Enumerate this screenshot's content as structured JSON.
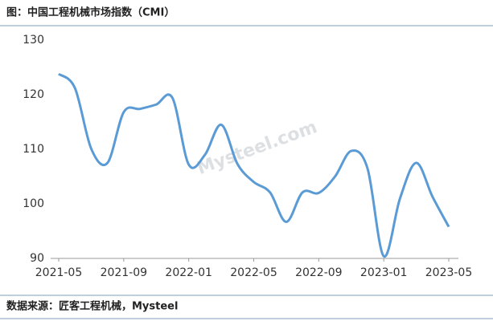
{
  "title": "图：中国工程机械市场指数（CMI）",
  "source": "数据来源：匠客工程机械，Mysteel",
  "chart_data": {
    "type": "line",
    "watermark": "Mysteel.com",
    "categories": [
      "2021-05",
      null,
      null,
      null,
      "2021-09",
      null,
      null,
      null,
      "2022-01",
      null,
      null,
      null,
      "2022-05",
      null,
      null,
      null,
      "2022-09",
      null,
      null,
      null,
      "2023-01",
      null,
      null,
      null,
      "2023-05"
    ],
    "series": [
      {
        "color": "#5b9bd5",
        "values": [
          123.8,
          121.2,
          110.1,
          107.5,
          116.8,
          117.4,
          118.2,
          119.4,
          107.2,
          109,
          114.5,
          107.3,
          104,
          102.1,
          96.7,
          102.1,
          102,
          105,
          109.7,
          106.5,
          90.4,
          101,
          107.5,
          101.3,
          95.8
        ]
      }
    ],
    "ylim": [
      90,
      130
    ],
    "yticks": [
      90,
      100,
      110,
      120,
      130
    ]
  }
}
